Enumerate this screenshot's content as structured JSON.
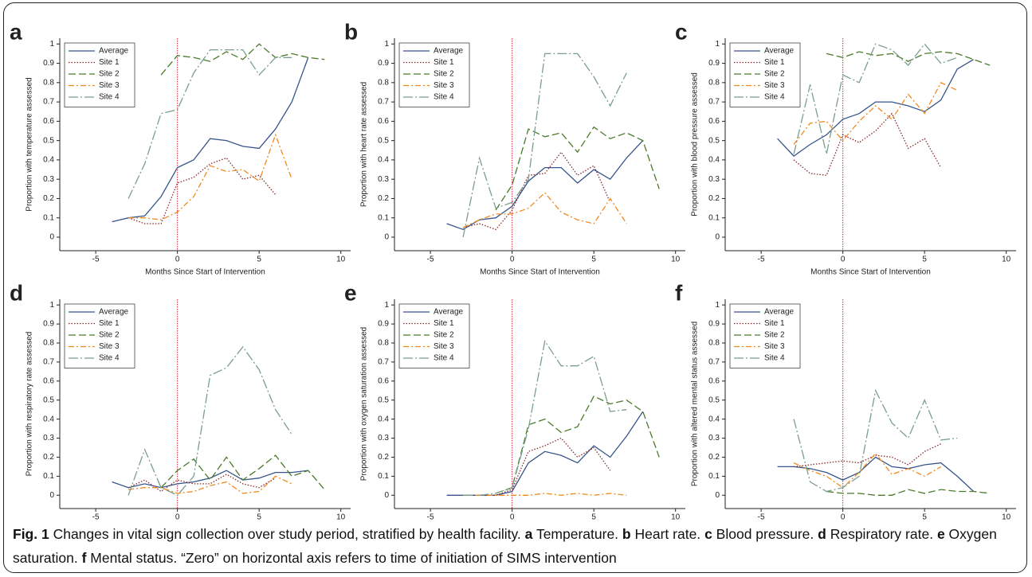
{
  "chart_data": [
    {
      "type": "line",
      "label": "a",
      "ylabel": "Proportion with temperature assessed",
      "xlabel": "Months Since Start of Intervention",
      "x": [
        -4,
        -3,
        -2,
        -1,
        0,
        1,
        2,
        3,
        4,
        5,
        6,
        7,
        8,
        9
      ],
      "xlim": [
        -7.2,
        10.6
      ],
      "ylim": [
        -0.07,
        1.03
      ],
      "xticks": [
        -5,
        0,
        5,
        10
      ],
      "yticks": [
        0,
        0.1,
        0.2,
        0.3,
        0.4,
        0.5,
        0.6,
        0.7,
        0.8,
        0.9,
        1
      ],
      "reference_x": 0,
      "reference_color": "#d4213a",
      "series": [
        {
          "name": "Average",
          "color": "#36558c",
          "style": "solid",
          "values": [
            0.08,
            0.1,
            0.11,
            0.21,
            0.36,
            0.4,
            0.51,
            0.5,
            0.47,
            0.46,
            0.56,
            0.7,
            0.93,
            null
          ]
        },
        {
          "name": "Site 1",
          "color": "#8b2a2a",
          "style": "dotted",
          "values": [
            null,
            0.1,
            0.07,
            0.07,
            0.28,
            0.31,
            0.38,
            0.41,
            0.3,
            0.32,
            0.22,
            null,
            null,
            null
          ]
        },
        {
          "name": "Site 2",
          "color": "#4a7a2a",
          "style": "dashed",
          "values": [
            null,
            null,
            null,
            0.84,
            0.94,
            0.93,
            0.91,
            0.96,
            0.92,
            1.0,
            0.93,
            0.95,
            0.93,
            0.92
          ]
        },
        {
          "name": "Site 3",
          "color": "#f08a20",
          "style": "dashdot",
          "values": [
            null,
            0.1,
            0.1,
            0.09,
            0.13,
            0.21,
            0.37,
            0.34,
            0.35,
            0.29,
            0.53,
            0.3,
            null,
            null
          ]
        },
        {
          "name": "Site 4",
          "color": "#7a9e8e",
          "style": "longdashdot",
          "values": [
            null,
            0.2,
            0.38,
            0.64,
            0.66,
            0.85,
            0.97,
            0.97,
            0.97,
            0.84,
            0.93,
            0.93,
            null,
            null
          ]
        }
      ]
    },
    {
      "type": "line",
      "label": "b",
      "ylabel": "Proportion with heart rate assessed",
      "xlabel": "Months Since Start of Intervention",
      "x": [
        -4,
        -3,
        -2,
        -1,
        0,
        1,
        2,
        3,
        4,
        5,
        6,
        7,
        8,
        9
      ],
      "xlim": [
        -7.2,
        10.6
      ],
      "ylim": [
        -0.07,
        1.03
      ],
      "xticks": [
        -5,
        0,
        5,
        10
      ],
      "yticks": [
        0,
        0.1,
        0.2,
        0.3,
        0.4,
        0.5,
        0.6,
        0.7,
        0.8,
        0.9,
        1
      ],
      "reference_x": 0,
      "reference_color": "#d4213a",
      "series": [
        {
          "name": "Average",
          "color": "#36558c",
          "style": "solid",
          "values": [
            0.07,
            0.04,
            0.09,
            0.1,
            0.16,
            0.29,
            0.36,
            0.36,
            0.28,
            0.35,
            0.3,
            0.41,
            0.5,
            null
          ]
        },
        {
          "name": "Site 1",
          "color": "#8b2a2a",
          "style": "dotted",
          "values": [
            null,
            0.05,
            0.07,
            0.04,
            0.14,
            0.32,
            0.33,
            0.44,
            0.32,
            0.37,
            0.18,
            null,
            null,
            null
          ]
        },
        {
          "name": "Site 2",
          "color": "#4a7a2a",
          "style": "dashed",
          "values": [
            null,
            null,
            null,
            0.14,
            0.27,
            0.56,
            0.52,
            0.54,
            0.44,
            0.57,
            0.51,
            0.54,
            0.5,
            0.25
          ]
        },
        {
          "name": "Site 3",
          "color": "#f08a20",
          "style": "dashdot",
          "values": [
            null,
            0.05,
            0.09,
            0.12,
            0.12,
            0.15,
            0.23,
            0.13,
            0.09,
            0.07,
            0.2,
            0.07,
            null,
            null
          ]
        },
        {
          "name": "Site 4",
          "color": "#7a9e8e",
          "style": "longdashdot",
          "values": [
            null,
            0.0,
            0.41,
            0.15,
            0.18,
            0.3,
            0.95,
            0.95,
            0.95,
            0.83,
            0.68,
            0.85,
            null,
            null
          ]
        }
      ]
    },
    {
      "type": "line",
      "label": "c",
      "ylabel": "Proportion with blood pressure assessed",
      "xlabel": "Months Since Start of Intervention",
      "x": [
        -4,
        -3,
        -2,
        -1,
        0,
        1,
        2,
        3,
        4,
        5,
        6,
        7,
        8,
        9
      ],
      "xlim": [
        -7.2,
        10.6
      ],
      "ylim": [
        -0.07,
        1.03
      ],
      "xticks": [
        -5,
        0,
        5,
        10
      ],
      "yticks": [
        0,
        0.1,
        0.2,
        0.3,
        0.4,
        0.5,
        0.6,
        0.7,
        0.8,
        0.9,
        1
      ],
      "reference_x": 0,
      "reference_color": "#d4213a",
      "series": [
        {
          "name": "Average",
          "color": "#36558c",
          "style": "solid",
          "values": [
            0.51,
            0.42,
            0.48,
            0.53,
            0.61,
            0.64,
            0.7,
            0.7,
            0.68,
            0.65,
            0.71,
            0.87,
            0.92,
            null
          ]
        },
        {
          "name": "Site 1",
          "color": "#8b2a2a",
          "style": "dotted",
          "values": [
            null,
            0.4,
            0.33,
            0.32,
            0.53,
            0.49,
            0.55,
            0.64,
            0.46,
            0.51,
            0.36,
            null,
            null,
            null
          ]
        },
        {
          "name": "Site 2",
          "color": "#4a7a2a",
          "style": "dashed",
          "values": [
            null,
            null,
            null,
            0.95,
            0.93,
            0.96,
            0.94,
            0.95,
            0.91,
            0.95,
            0.96,
            0.95,
            0.92,
            0.89
          ]
        },
        {
          "name": "Site 3",
          "color": "#f08a20",
          "style": "dashdot",
          "values": [
            null,
            0.48,
            0.59,
            0.6,
            0.5,
            0.6,
            0.68,
            0.61,
            0.74,
            0.64,
            0.8,
            0.76,
            null,
            null
          ]
        },
        {
          "name": "Site 4",
          "color": "#7a9e8e",
          "style": "longdashdot",
          "values": [
            null,
            0.43,
            0.79,
            0.43,
            0.84,
            0.8,
            1.0,
            0.97,
            0.89,
            1.0,
            0.9,
            0.93,
            null,
            null
          ]
        }
      ]
    },
    {
      "type": "line",
      "label": "d",
      "ylabel": "Proportion with respiratory rate assessed",
      "xlabel": "Months Since Start of Intervention",
      "x": [
        -4,
        -3,
        -2,
        -1,
        0,
        1,
        2,
        3,
        4,
        5,
        6,
        7,
        8,
        9
      ],
      "xlim": [
        -7.2,
        10.6
      ],
      "ylim": [
        -0.07,
        1.03
      ],
      "xticks": [
        -5,
        0,
        5,
        10
      ],
      "yticks": [
        0,
        0.1,
        0.2,
        0.3,
        0.4,
        0.5,
        0.6,
        0.7,
        0.8,
        0.9,
        1
      ],
      "reference_x": 0,
      "reference_color": "#d4213a",
      "series": [
        {
          "name": "Average",
          "color": "#36558c",
          "style": "solid",
          "values": [
            0.07,
            0.04,
            0.06,
            0.04,
            0.06,
            0.07,
            0.09,
            0.13,
            0.08,
            0.09,
            0.12,
            0.12,
            0.13,
            null
          ]
        },
        {
          "name": "Site 1",
          "color": "#8b2a2a",
          "style": "dotted",
          "values": [
            null,
            0.04,
            0.08,
            0.02,
            0.08,
            0.06,
            0.06,
            0.11,
            0.06,
            0.04,
            0.09,
            null,
            null,
            null
          ]
        },
        {
          "name": "Site 2",
          "color": "#4a7a2a",
          "style": "dashed",
          "values": [
            null,
            null,
            null,
            0.04,
            0.13,
            0.19,
            0.08,
            0.2,
            0.08,
            0.14,
            0.21,
            0.1,
            0.13,
            0.03
          ]
        },
        {
          "name": "Site 3",
          "color": "#f08a20",
          "style": "dashdot",
          "values": [
            null,
            0.03,
            0.04,
            0.04,
            0.01,
            0.02,
            0.05,
            0.07,
            0.01,
            0.02,
            0.1,
            0.06,
            null,
            null
          ]
        },
        {
          "name": "Site 4",
          "color": "#7a9e8e",
          "style": "longdashdot",
          "values": [
            null,
            0.0,
            0.24,
            0.04,
            0.0,
            0.1,
            0.63,
            0.67,
            0.78,
            0.66,
            0.45,
            0.32,
            null,
            null
          ]
        }
      ]
    },
    {
      "type": "line",
      "label": "e",
      "ylabel": "Proportion with oxygen saturation assessed",
      "xlabel": "Months Since Start of Intervention",
      "x": [
        -4,
        -3,
        -2,
        -1,
        0,
        1,
        2,
        3,
        4,
        5,
        6,
        7,
        8,
        9
      ],
      "xlim": [
        -7.2,
        10.6
      ],
      "ylim": [
        -0.07,
        1.03
      ],
      "xticks": [
        -5,
        0,
        5,
        10
      ],
      "yticks": [
        0,
        0.1,
        0.2,
        0.3,
        0.4,
        0.5,
        0.6,
        0.7,
        0.8,
        0.9,
        1
      ],
      "reference_x": 0,
      "reference_color": "#d4213a",
      "series": [
        {
          "name": "Average",
          "color": "#36558c",
          "style": "solid",
          "values": [
            0,
            0,
            0,
            0,
            0.02,
            0.17,
            0.23,
            0.21,
            0.17,
            0.26,
            0.2,
            0.31,
            0.44,
            null
          ]
        },
        {
          "name": "Site 1",
          "color": "#8b2a2a",
          "style": "dotted",
          "values": [
            null,
            0,
            0,
            0,
            0.03,
            0.23,
            0.26,
            0.3,
            0.2,
            0.25,
            0.13,
            null,
            null,
            null
          ]
        },
        {
          "name": "Site 2",
          "color": "#4a7a2a",
          "style": "dashed",
          "values": [
            null,
            null,
            null,
            0.01,
            0.04,
            0.37,
            0.4,
            0.33,
            0.36,
            0.52,
            0.48,
            0.5,
            0.44,
            0.2
          ]
        },
        {
          "name": "Site 3",
          "color": "#f08a20",
          "style": "dashdot",
          "values": [
            null,
            0,
            0,
            0,
            0,
            0,
            0.01,
            0,
            0.01,
            0,
            0.01,
            0,
            null,
            null
          ]
        },
        {
          "name": "Site 4",
          "color": "#7a9e8e",
          "style": "longdashdot",
          "values": [
            null,
            0,
            0,
            0.01,
            0.04,
            0.35,
            0.81,
            0.68,
            0.68,
            0.73,
            0.44,
            0.45,
            null,
            null
          ]
        }
      ]
    },
    {
      "type": "line",
      "label": "f",
      "ylabel": "Proportion with altered mental status assessed",
      "xlabel": "Months Since Start of Intervention",
      "x": [
        -4,
        -3,
        -2,
        -1,
        0,
        1,
        2,
        3,
        4,
        5,
        6,
        7,
        8,
        9
      ],
      "xlim": [
        -7.2,
        10.6
      ],
      "ylim": [
        -0.07,
        1.03
      ],
      "xticks": [
        -5,
        0,
        5,
        10
      ],
      "yticks": [
        0,
        0.1,
        0.2,
        0.3,
        0.4,
        0.5,
        0.6,
        0.7,
        0.8,
        0.9,
        1
      ],
      "reference_x": 0,
      "reference_color": "#d4213a",
      "series": [
        {
          "name": "Average",
          "color": "#36558c",
          "style": "solid",
          "values": [
            0.15,
            0.15,
            0.14,
            0.12,
            0.08,
            0.12,
            0.2,
            0.15,
            0.14,
            0.16,
            0.17,
            0.1,
            0.02,
            null
          ]
        },
        {
          "name": "Site 1",
          "color": "#8b2a2a",
          "style": "dotted",
          "values": [
            null,
            0.15,
            0.16,
            0.17,
            0.18,
            0.17,
            0.21,
            0.2,
            0.16,
            0.23,
            0.27,
            null,
            null,
            null
          ]
        },
        {
          "name": "Site 2",
          "color": "#4a7a2a",
          "style": "dashed",
          "values": [
            null,
            null,
            null,
            0.02,
            0.01,
            0.01,
            0,
            0,
            0.03,
            0.01,
            0.03,
            0.02,
            0.02,
            0.01
          ]
        },
        {
          "name": "Site 3",
          "color": "#f08a20",
          "style": "dashdot",
          "values": [
            null,
            0.17,
            0.13,
            0.1,
            0.04,
            0.12,
            0.22,
            0.11,
            0.14,
            0.1,
            0.15,
            null,
            null,
            null
          ]
        },
        {
          "name": "Site 4",
          "color": "#7a9e8e",
          "style": "longdashdot",
          "values": [
            null,
            0.4,
            0.07,
            0.02,
            0.04,
            0.1,
            0.55,
            0.38,
            0.3,
            0.5,
            0.29,
            0.3,
            null,
            null
          ]
        }
      ]
    }
  ],
  "caption": {
    "label": "Fig. 1",
    "text": "Changes in vital sign collection over study period, stratified by health facility.",
    "parts": [
      {
        "letter": "a",
        "text": "Temperature."
      },
      {
        "letter": "b",
        "text": "Heart rate."
      },
      {
        "letter": "c",
        "text": "Blood pressure."
      },
      {
        "letter": "d",
        "text": "Respiratory rate."
      },
      {
        "letter": "e",
        "text": "Oxygen saturation."
      },
      {
        "letter": "f",
        "text": "Mental status. “Zero” on horizontal axis refers to time of initiation of SIMS intervention"
      }
    ]
  }
}
